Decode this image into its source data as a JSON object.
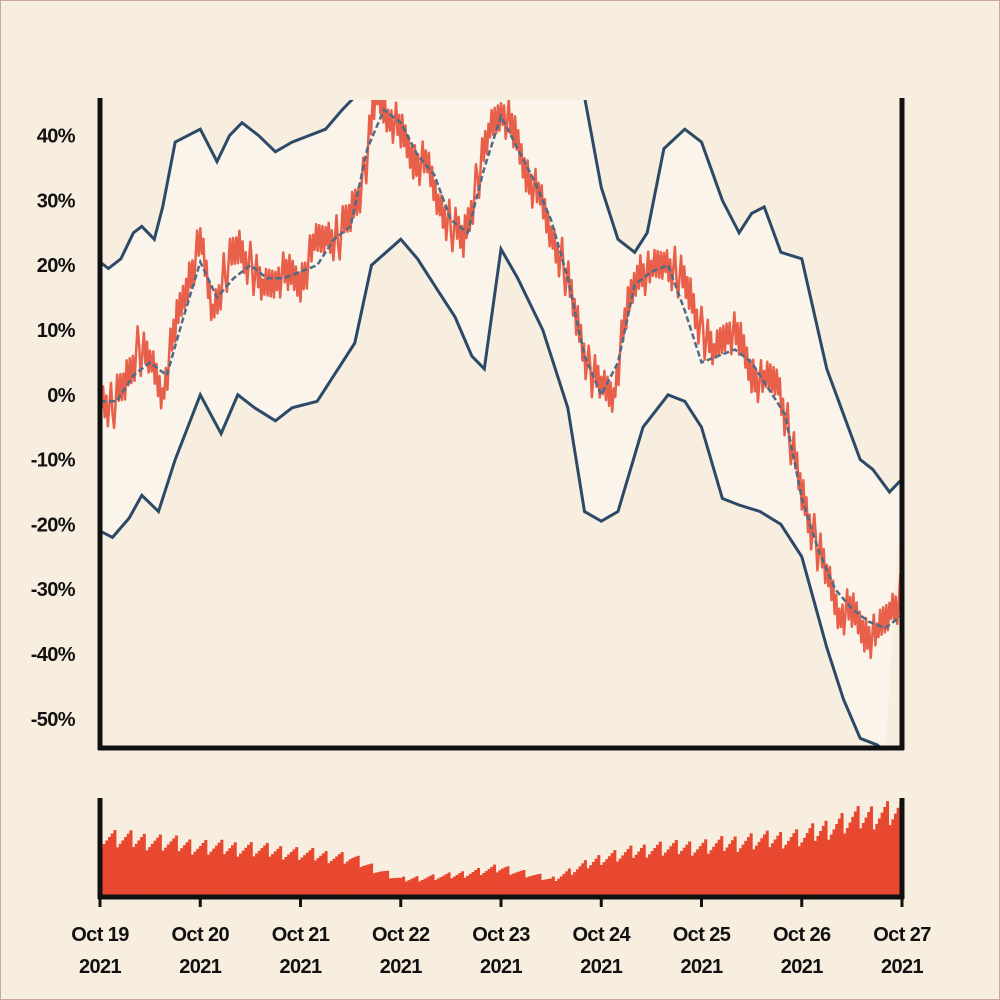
{
  "chart_data": {
    "type": "line",
    "x_ticks": [
      {
        "date": "2021-10-19",
        "line1": "Oct 19",
        "line2": "2021"
      },
      {
        "date": "2021-10-20",
        "line1": "Oct 20",
        "line2": "2021"
      },
      {
        "date": "2021-10-21",
        "line1": "Oct 21",
        "line2": "2021"
      },
      {
        "date": "2021-10-22",
        "line1": "Oct 22",
        "line2": "2021"
      },
      {
        "date": "2021-10-23",
        "line1": "Oct 23",
        "line2": "2021"
      },
      {
        "date": "2021-10-24",
        "line1": "Oct 24",
        "line2": "2021"
      },
      {
        "date": "2021-10-25",
        "line1": "Oct 25",
        "line2": "2021"
      },
      {
        "date": "2021-10-26",
        "line1": "Oct 26",
        "line2": "2021"
      },
      {
        "date": "2021-10-27",
        "line1": "Oct 27",
        "line2": "2021"
      }
    ],
    "y_ticks": [
      "40%",
      "30%",
      "20%",
      "10%",
      "0%",
      "-10%",
      "-20%",
      "-30%",
      "-40%",
      "-50%"
    ],
    "y_tick_values": [
      40,
      30,
      20,
      10,
      0,
      -10,
      -20,
      -30,
      -40,
      -50
    ],
    "ylim": [
      -54.5,
      45.5
    ],
    "xlim": [
      "2021-10-19",
      "2021-10-27"
    ],
    "grid": false,
    "band_fill": "rgba(255,255,255,0.35)",
    "series": [
      {
        "role": "value",
        "color": "#e8604a",
        "points": [
          [
            "2021-10-19 00:00",
            0
          ],
          [
            "2021-10-19 03:00",
            -2
          ],
          [
            "2021-10-19 06:00",
            2
          ],
          [
            "2021-10-19 09:00",
            7
          ],
          [
            "2021-10-19 12:00",
            5
          ],
          [
            "2021-10-19 15:00",
            1
          ],
          [
            "2021-10-19 18:00",
            10
          ],
          [
            "2021-10-19 21:00",
            18
          ],
          [
            "2021-10-20 00:00",
            23
          ],
          [
            "2021-10-20 03:00",
            13
          ],
          [
            "2021-10-20 06:00",
            19
          ],
          [
            "2021-10-20 09:00",
            23
          ],
          [
            "2021-10-20 12:00",
            20
          ],
          [
            "2021-10-20 15:00",
            16
          ],
          [
            "2021-10-20 18:00",
            19
          ],
          [
            "2021-10-20 21:00",
            18
          ],
          [
            "2021-10-21 00:00",
            18
          ],
          [
            "2021-10-21 03:00",
            22
          ],
          [
            "2021-10-21 06:00",
            25
          ],
          [
            "2021-10-21 09:00",
            24
          ],
          [
            "2021-10-21 12:00",
            28
          ],
          [
            "2021-10-21 15:00",
            33
          ],
          [
            "2021-10-21 18:00",
            46
          ],
          [
            "2021-10-21 21:00",
            44
          ],
          [
            "2021-10-22 00:00",
            40
          ],
          [
            "2021-10-22 03:00",
            37
          ],
          [
            "2021-10-22 06:00",
            35
          ],
          [
            "2021-10-22 09:00",
            30
          ],
          [
            "2021-10-22 12:00",
            26
          ],
          [
            "2021-10-22 15:00",
            24
          ],
          [
            "2021-10-22 18:00",
            32
          ],
          [
            "2021-10-22 21:00",
            40
          ],
          [
            "2021-10-23 00:00",
            45
          ],
          [
            "2021-10-23 03:00",
            40
          ],
          [
            "2021-10-23 06:00",
            35
          ],
          [
            "2021-10-23 09:00",
            30
          ],
          [
            "2021-10-23 12:00",
            25
          ],
          [
            "2021-10-23 15:00",
            20
          ],
          [
            "2021-10-23 18:00",
            12
          ],
          [
            "2021-10-23 21:00",
            4
          ],
          [
            "2021-10-24 00:00",
            1
          ],
          [
            "2021-10-24 03:00",
            1
          ],
          [
            "2021-10-24 06:00",
            12
          ],
          [
            "2021-10-24 09:00",
            20
          ],
          [
            "2021-10-24 12:00",
            18
          ],
          [
            "2021-10-24 15:00",
            21
          ],
          [
            "2021-10-24 18:00",
            19
          ],
          [
            "2021-10-24 21:00",
            16
          ],
          [
            "2021-10-25 00:00",
            10
          ],
          [
            "2021-10-25 03:00",
            6
          ],
          [
            "2021-10-25 06:00",
            11
          ],
          [
            "2021-10-25 09:00",
            8
          ],
          [
            "2021-10-25 12:00",
            4
          ],
          [
            "2021-10-25 15:00",
            1
          ],
          [
            "2021-10-25 18:00",
            3
          ],
          [
            "2021-10-25 21:00",
            -6
          ],
          [
            "2021-10-26 00:00",
            -15
          ],
          [
            "2021-10-26 03:00",
            -22
          ],
          [
            "2021-10-26 06:00",
            -28
          ],
          [
            "2021-10-26 09:00",
            -33
          ],
          [
            "2021-10-26 12:00",
            -34
          ],
          [
            "2021-10-26 15:00",
            -36
          ],
          [
            "2021-10-26 18:00",
            -38
          ],
          [
            "2021-10-26 21:00",
            -33
          ],
          [
            "2021-10-27 00:00",
            -31
          ]
        ]
      },
      {
        "role": "moving-average",
        "color": "#4f6b86",
        "dashed": true,
        "points": [
          [
            "2021-10-19 00:00",
            -1
          ],
          [
            "2021-10-19 04:00",
            -1
          ],
          [
            "2021-10-19 08:00",
            3
          ],
          [
            "2021-10-19 12:00",
            5
          ],
          [
            "2021-10-19 16:00",
            3
          ],
          [
            "2021-10-19 20:00",
            12
          ],
          [
            "2021-10-20 00:00",
            20.5
          ],
          [
            "2021-10-20 04:00",
            15
          ],
          [
            "2021-10-20 08:00",
            18
          ],
          [
            "2021-10-20 12:00",
            20
          ],
          [
            "2021-10-20 16:00",
            18
          ],
          [
            "2021-10-20 20:00",
            18
          ],
          [
            "2021-10-21 00:00",
            19
          ],
          [
            "2021-10-21 04:00",
            20
          ],
          [
            "2021-10-21 08:00",
            24
          ],
          [
            "2021-10-21 12:00",
            26
          ],
          [
            "2021-10-21 16:00",
            38
          ],
          [
            "2021-10-21 20:00",
            44
          ],
          [
            "2021-10-22 00:00",
            42
          ],
          [
            "2021-10-22 04:00",
            37
          ],
          [
            "2021-10-22 08:00",
            34
          ],
          [
            "2021-10-22 12:00",
            27
          ],
          [
            "2021-10-22 16:00",
            25
          ],
          [
            "2021-10-22 20:00",
            35
          ],
          [
            "2021-10-23 00:00",
            43
          ],
          [
            "2021-10-23 04:00",
            38
          ],
          [
            "2021-10-23 08:00",
            33
          ],
          [
            "2021-10-23 12:00",
            27
          ],
          [
            "2021-10-23 16:00",
            18
          ],
          [
            "2021-10-23 20:00",
            6
          ],
          [
            "2021-10-24 00:00",
            0
          ],
          [
            "2021-10-24 04:00",
            5
          ],
          [
            "2021-10-24 08:00",
            17
          ],
          [
            "2021-10-24 12:00",
            19
          ],
          [
            "2021-10-24 16:00",
            20
          ],
          [
            "2021-10-24 20:00",
            13
          ],
          [
            "2021-10-25 00:00",
            5
          ],
          [
            "2021-10-25 04:00",
            6
          ],
          [
            "2021-10-25 08:00",
            7
          ],
          [
            "2021-10-25 12:00",
            5
          ],
          [
            "2021-10-25 16:00",
            1
          ],
          [
            "2021-10-25 20:00",
            -3
          ],
          [
            "2021-10-26 00:00",
            -16
          ],
          [
            "2021-10-26 04:00",
            -24
          ],
          [
            "2021-10-26 08:00",
            -30
          ],
          [
            "2021-10-26 12:00",
            -33
          ],
          [
            "2021-10-26 16:00",
            -35
          ],
          [
            "2021-10-26 20:00",
            -36
          ],
          [
            "2021-10-27 00:00",
            -34
          ]
        ]
      },
      {
        "role": "upper-band",
        "color": "#2c4a68",
        "points": [
          [
            "2021-10-19 00:00",
            20.5
          ],
          [
            "2021-10-19 02:00",
            19.5
          ],
          [
            "2021-10-19 05:00",
            21
          ],
          [
            "2021-10-19 08:00",
            25
          ],
          [
            "2021-10-19 10:00",
            26
          ],
          [
            "2021-10-19 13:00",
            24
          ],
          [
            "2021-10-19 15:00",
            29
          ],
          [
            "2021-10-19 18:00",
            39
          ],
          [
            "2021-10-20 00:00",
            41
          ],
          [
            "2021-10-20 04:00",
            36
          ],
          [
            "2021-10-20 07:00",
            40
          ],
          [
            "2021-10-20 10:00",
            42
          ],
          [
            "2021-10-20 14:00",
            40
          ],
          [
            "2021-10-20 18:00",
            37.5
          ],
          [
            "2021-10-20 22:00",
            39
          ],
          [
            "2021-10-21 02:00",
            40
          ],
          [
            "2021-10-21 06:00",
            41
          ],
          [
            "2021-10-21 10:00",
            44
          ],
          [
            "2021-10-21 13:00",
            46
          ],
          [
            "2021-10-22 00:00",
            46
          ],
          [
            "2021-10-22 12:00",
            46
          ],
          [
            "2021-10-23 00:00",
            46
          ],
          [
            "2021-10-23 12:00",
            46
          ],
          [
            "2021-10-23 20:00",
            46
          ],
          [
            "2021-10-24 00:00",
            32
          ],
          [
            "2021-10-24 04:00",
            24
          ],
          [
            "2021-10-24 08:00",
            22
          ],
          [
            "2021-10-24 11:00",
            25
          ],
          [
            "2021-10-24 15:00",
            38
          ],
          [
            "2021-10-24 20:00",
            41
          ],
          [
            "2021-10-25 00:00",
            39
          ],
          [
            "2021-10-25 05:00",
            30
          ],
          [
            "2021-10-25 09:00",
            25
          ],
          [
            "2021-10-25 12:00",
            28
          ],
          [
            "2021-10-25 15:00",
            29
          ],
          [
            "2021-10-25 19:00",
            22
          ],
          [
            "2021-10-26 00:00",
            21
          ],
          [
            "2021-10-26 06:00",
            4
          ],
          [
            "2021-10-26 10:00",
            -3
          ],
          [
            "2021-10-26 14:00",
            -10
          ],
          [
            "2021-10-26 17:00",
            -11.5
          ],
          [
            "2021-10-26 21:00",
            -15
          ],
          [
            "2021-10-27 00:00",
            -13
          ]
        ]
      },
      {
        "role": "lower-band",
        "color": "#2c4a68",
        "points": [
          [
            "2021-10-19 00:00",
            -21
          ],
          [
            "2021-10-19 03:00",
            -22
          ],
          [
            "2021-10-19 07:00",
            -19
          ],
          [
            "2021-10-19 10:00",
            -15.5
          ],
          [
            "2021-10-19 14:00",
            -18
          ],
          [
            "2021-10-19 18:00",
            -10
          ],
          [
            "2021-10-20 00:00",
            0
          ],
          [
            "2021-10-20 05:00",
            -6
          ],
          [
            "2021-10-20 09:00",
            0
          ],
          [
            "2021-10-20 13:00",
            -2
          ],
          [
            "2021-10-20 18:00",
            -4
          ],
          [
            "2021-10-20 22:00",
            -2
          ],
          [
            "2021-10-21 04:00",
            -1
          ],
          [
            "2021-10-21 09:00",
            4
          ],
          [
            "2021-10-21 13:00",
            8
          ],
          [
            "2021-10-21 17:00",
            20
          ],
          [
            "2021-10-22 00:00",
            24
          ],
          [
            "2021-10-22 04:00",
            21
          ],
          [
            "2021-10-22 09:00",
            16
          ],
          [
            "2021-10-22 13:00",
            12
          ],
          [
            "2021-10-22 17:00",
            6
          ],
          [
            "2021-10-22 20:00",
            4
          ],
          [
            "2021-10-23 00:00",
            22.5
          ],
          [
            "2021-10-23 04:00",
            18
          ],
          [
            "2021-10-23 10:00",
            10
          ],
          [
            "2021-10-23 16:00",
            -2
          ],
          [
            "2021-10-23 20:00",
            -18
          ],
          [
            "2021-10-24 00:00",
            -19.5
          ],
          [
            "2021-10-24 04:00",
            -18
          ],
          [
            "2021-10-24 10:00",
            -5
          ],
          [
            "2021-10-24 16:00",
            0
          ],
          [
            "2021-10-24 20:00",
            -1
          ],
          [
            "2021-10-25 00:00",
            -5
          ],
          [
            "2021-10-25 05:00",
            -16
          ],
          [
            "2021-10-25 09:00",
            -17
          ],
          [
            "2021-10-25 14:00",
            -18
          ],
          [
            "2021-10-25 19:00",
            -20
          ],
          [
            "2021-10-26 00:00",
            -25
          ],
          [
            "2021-10-26 06:00",
            -39
          ],
          [
            "2021-10-26 10:00",
            -47
          ],
          [
            "2021-10-26 14:00",
            -53
          ],
          [
            "2021-10-26 18:00",
            -54
          ],
          [
            "2021-10-26 20:00",
            -55
          ]
        ]
      }
    ],
    "volume": {
      "type": "bar",
      "color": "#e8482f",
      "envelope": [
        [
          "2021-10-19 00:00",
          0.62
        ],
        [
          "2021-10-19 12:00",
          0.58
        ],
        [
          "2021-10-20 00:00",
          0.52
        ],
        [
          "2021-10-20 12:00",
          0.5
        ],
        [
          "2021-10-21 00:00",
          0.45
        ],
        [
          "2021-10-21 12:00",
          0.4
        ],
        [
          "2021-10-22 00:00",
          0.18
        ],
        [
          "2021-10-22 12:00",
          0.22
        ],
        [
          "2021-10-23 00:00",
          0.3
        ],
        [
          "2021-10-23 12:00",
          0.18
        ],
        [
          "2021-10-24 00:00",
          0.4
        ],
        [
          "2021-10-24 12:00",
          0.5
        ],
        [
          "2021-10-25 00:00",
          0.52
        ],
        [
          "2021-10-25 12:00",
          0.58
        ],
        [
          "2021-10-26 00:00",
          0.62
        ],
        [
          "2021-10-26 12:00",
          0.8
        ],
        [
          "2021-10-27 00:00",
          0.9
        ]
      ],
      "bar_count": 300
    }
  }
}
